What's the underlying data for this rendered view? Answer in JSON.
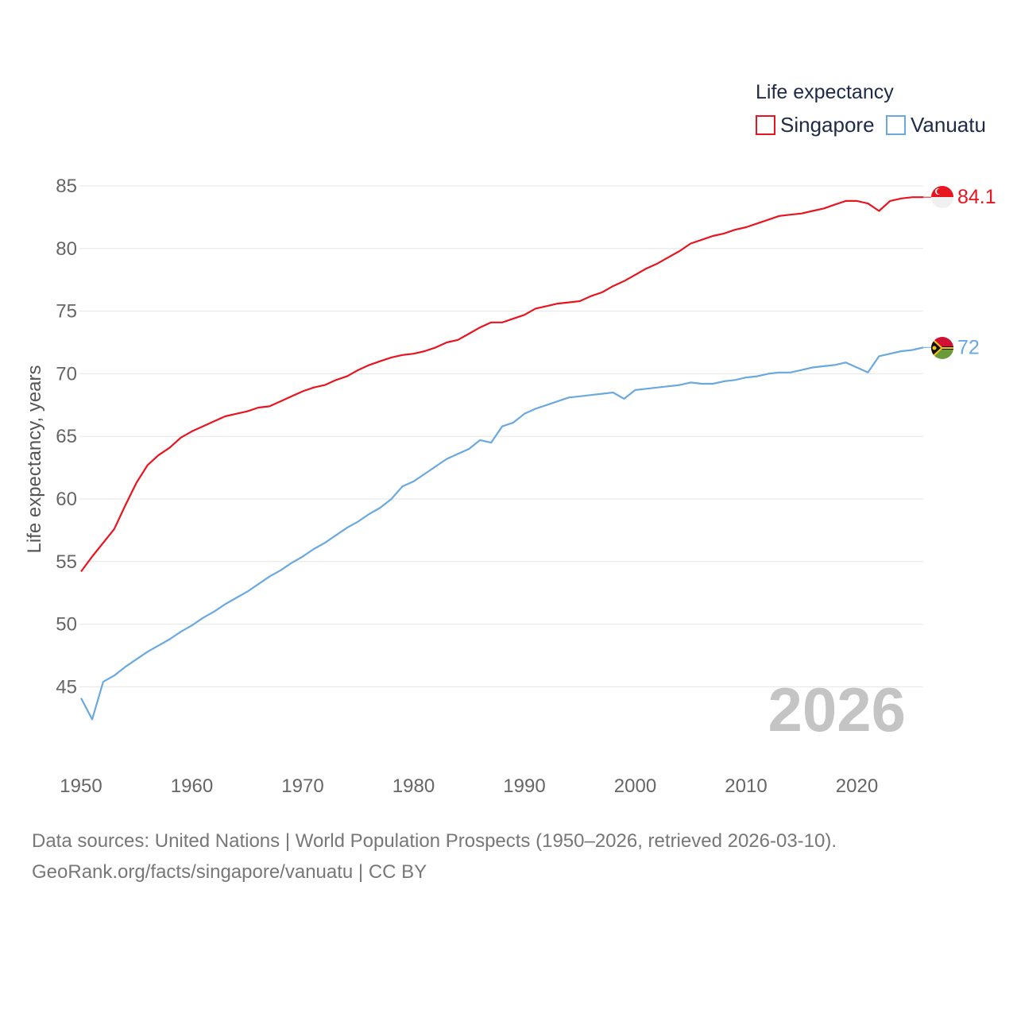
{
  "chart_data": {
    "type": "line",
    "ylabel": "Life expectancy, years",
    "xlabel": "",
    "ylim": [
      41,
      87
    ],
    "xlim": [
      1950,
      2026
    ],
    "yticks": [
      45,
      50,
      55,
      60,
      65,
      70,
      75,
      80,
      85
    ],
    "xticks": [
      1950,
      1960,
      1970,
      1980,
      1990,
      2000,
      2010,
      2020
    ],
    "grid": true,
    "legend_title": "Life expectancy",
    "legend_position": "top-right",
    "year_stamp": "2026",
    "series": [
      {
        "name": "Singapore",
        "color": "#e8141f",
        "end_label": "84.1",
        "flag": "singapore-flag",
        "x": [
          1950,
          1951,
          1952,
          1953,
          1954,
          1955,
          1956,
          1957,
          1958,
          1959,
          1960,
          1961,
          1962,
          1963,
          1964,
          1965,
          1966,
          1967,
          1968,
          1969,
          1970,
          1971,
          1972,
          1973,
          1974,
          1975,
          1976,
          1977,
          1978,
          1979,
          1980,
          1981,
          1982,
          1983,
          1984,
          1985,
          1986,
          1987,
          1988,
          1989,
          1990,
          1991,
          1992,
          1993,
          1994,
          1995,
          1996,
          1997,
          1998,
          1999,
          2000,
          2001,
          2002,
          2003,
          2004,
          2005,
          2006,
          2007,
          2008,
          2009,
          2010,
          2011,
          2012,
          2013,
          2014,
          2015,
          2016,
          2017,
          2018,
          2019,
          2020,
          2021,
          2022,
          2023,
          2024,
          2025,
          2026
        ],
        "values": [
          54.2,
          55.4,
          56.5,
          57.6,
          59.5,
          61.3,
          62.7,
          63.5,
          64.1,
          64.9,
          65.4,
          65.8,
          66.2,
          66.6,
          66.8,
          67.0,
          67.3,
          67.4,
          67.8,
          68.2,
          68.6,
          68.9,
          69.1,
          69.5,
          69.8,
          70.3,
          70.7,
          71.0,
          71.3,
          71.5,
          71.6,
          71.8,
          72.1,
          72.5,
          72.7,
          73.2,
          73.7,
          74.1,
          74.1,
          74.4,
          74.7,
          75.2,
          75.4,
          75.6,
          75.7,
          75.8,
          76.2,
          76.5,
          77.0,
          77.4,
          77.9,
          78.4,
          78.8,
          79.3,
          79.8,
          80.4,
          80.7,
          81.0,
          81.2,
          81.5,
          81.7,
          82.0,
          82.3,
          82.6,
          82.7,
          82.8,
          83.0,
          83.2,
          83.5,
          83.8,
          83.8,
          83.6,
          83.0,
          83.8,
          84.0,
          84.1,
          84.1
        ]
      },
      {
        "name": "Vanuatu",
        "color": "#6aa9e0",
        "end_label": "72",
        "flag": "vanuatu-flag",
        "x": [
          1950,
          1951,
          1952,
          1953,
          1954,
          1955,
          1956,
          1957,
          1958,
          1959,
          1960,
          1961,
          1962,
          1963,
          1964,
          1965,
          1966,
          1967,
          1968,
          1969,
          1970,
          1971,
          1972,
          1973,
          1974,
          1975,
          1976,
          1977,
          1978,
          1979,
          1980,
          1981,
          1982,
          1983,
          1984,
          1985,
          1986,
          1987,
          1988,
          1989,
          1990,
          1991,
          1992,
          1993,
          1994,
          1995,
          1996,
          1997,
          1998,
          1999,
          2000,
          2001,
          2002,
          2003,
          2004,
          2005,
          2006,
          2007,
          2008,
          2009,
          2010,
          2011,
          2012,
          2013,
          2014,
          2015,
          2016,
          2017,
          2018,
          2019,
          2020,
          2021,
          2022,
          2023,
          2024,
          2025,
          2026
        ],
        "values": [
          44.1,
          42.4,
          45.4,
          45.9,
          46.6,
          47.2,
          47.8,
          48.3,
          48.8,
          49.4,
          49.9,
          50.5,
          51.0,
          51.6,
          52.1,
          52.6,
          53.2,
          53.8,
          54.3,
          54.9,
          55.4,
          56.0,
          56.5,
          57.1,
          57.7,
          58.2,
          58.8,
          59.3,
          60.0,
          61.0,
          61.4,
          62.0,
          62.6,
          63.2,
          63.6,
          64.0,
          64.7,
          64.5,
          65.8,
          66.1,
          66.8,
          67.2,
          67.5,
          67.8,
          68.1,
          68.2,
          68.3,
          68.4,
          68.5,
          68.0,
          68.7,
          68.8,
          68.9,
          69.0,
          69.1,
          69.3,
          69.2,
          69.2,
          69.4,
          69.5,
          69.7,
          69.8,
          70.0,
          70.1,
          70.1,
          70.3,
          70.5,
          70.6,
          70.7,
          70.9,
          70.5,
          70.1,
          71.4,
          71.6,
          71.8,
          71.9,
          72.1
        ]
      }
    ]
  },
  "footer": {
    "sources": "Data sources: United Nations | World Population Prospects (1950–2026, retrieved 2026-03-10).",
    "credit": "GeoRank.org/facts/singapore/vanuatu | CC BY"
  }
}
